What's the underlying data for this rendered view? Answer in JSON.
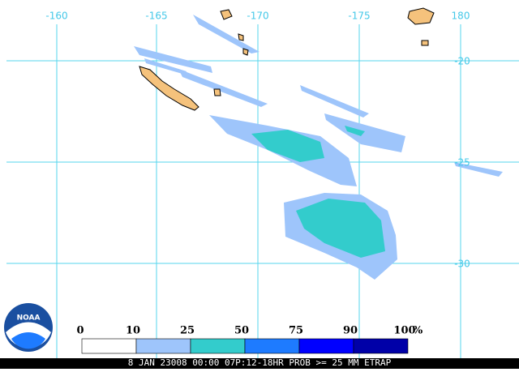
{
  "map": {
    "lon_labels": [
      "-160",
      "-165",
      "-170",
      "-175",
      "180"
    ],
    "lat_labels": [
      "-20",
      "-25",
      "-30"
    ]
  },
  "legend": {
    "labels": [
      "0",
      "10",
      "25",
      "50",
      "75",
      "90",
      "100"
    ],
    "unit": "%",
    "colors": [
      "#ffffff",
      "#9ec5fb",
      "#33cccc",
      "#1e7bff",
      "#0000ff",
      "#0000a8"
    ]
  },
  "logo": {
    "text": "NOAA"
  },
  "footer": "8 JAN 23008 00:00 07P:12-18HR PROB >= 25 MM ETRAP"
}
